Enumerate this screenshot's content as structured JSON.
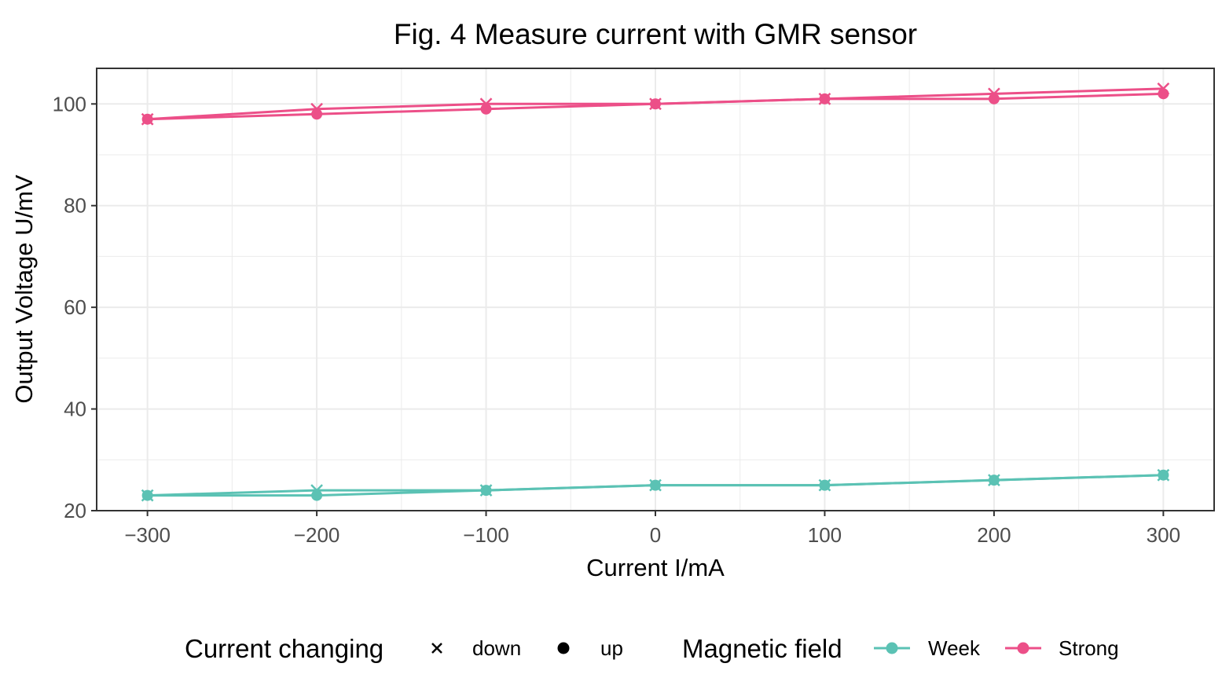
{
  "chart_data": {
    "type": "line",
    "title": "Fig. 4 Measure current with GMR sensor",
    "xlabel": "Current I/mA",
    "ylabel": "Output Voltage U/mV",
    "xlim": [
      -330,
      330
    ],
    "ylim": [
      20,
      107
    ],
    "x_ticks": [
      -300,
      -200,
      -100,
      0,
      100,
      200,
      300
    ],
    "x_tick_labels": [
      "−300",
      "−200",
      "−100",
      "0",
      "100",
      "200",
      "300"
    ],
    "y_ticks": [
      20,
      40,
      60,
      80,
      100
    ],
    "y_tick_labels": [
      "20",
      "40",
      "60",
      "80",
      "100"
    ],
    "grid": true,
    "legend_position": "bottom",
    "legends": {
      "shape": {
        "title": "Current changing",
        "items": [
          {
            "key": "down",
            "label": "down",
            "marker": "cross"
          },
          {
            "key": "up",
            "label": "up",
            "marker": "circle"
          }
        ]
      },
      "color": {
        "title": "Magnetic field",
        "items": [
          {
            "key": "week",
            "label": "Week",
            "color": "#5BC2B4"
          },
          {
            "key": "strong",
            "label": "Strong",
            "color": "#EC4F88"
          }
        ]
      }
    },
    "x": [
      -300,
      -200,
      -100,
      0,
      100,
      200,
      300
    ],
    "series": [
      {
        "field": "strong",
        "direction": "down",
        "color": "#EC4F88",
        "marker": "cross",
        "values": [
          97,
          99,
          100,
          100,
          101,
          102,
          103
        ]
      },
      {
        "field": "strong",
        "direction": "up",
        "color": "#EC4F88",
        "marker": "circle",
        "values": [
          97,
          98,
          99,
          100,
          101,
          101,
          102
        ]
      },
      {
        "field": "week",
        "direction": "down",
        "color": "#5BC2B4",
        "marker": "cross",
        "values": [
          23,
          24,
          24,
          25,
          25,
          26,
          27
        ]
      },
      {
        "field": "week",
        "direction": "up",
        "color": "#5BC2B4",
        "marker": "circle",
        "values": [
          23,
          23,
          24,
          25,
          25,
          26,
          27
        ]
      }
    ]
  }
}
